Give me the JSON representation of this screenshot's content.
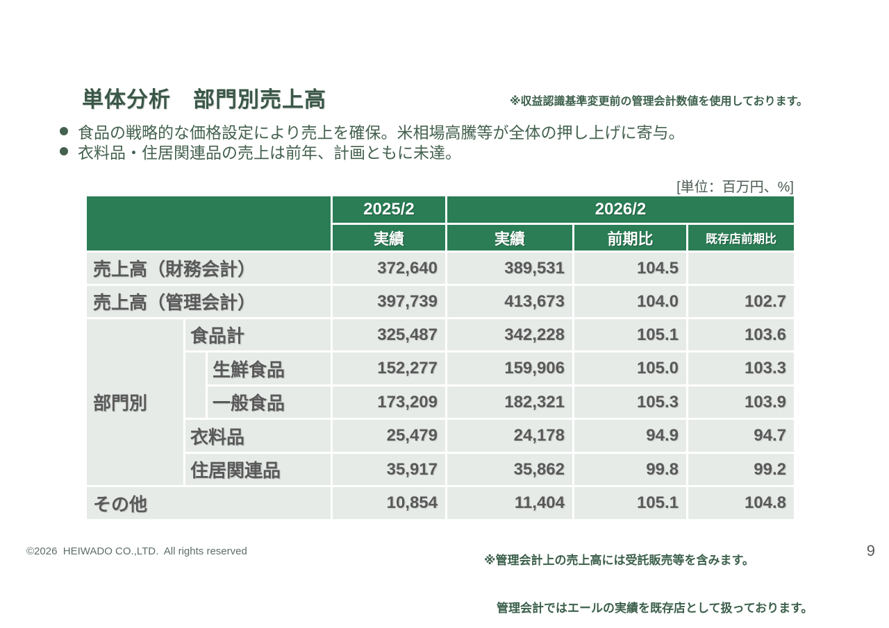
{
  "slide": {
    "title": "単体分析　部門別売上高",
    "header_note": "※収益認識基準変更前の管理会計数値を使用しております。",
    "bullets": [
      "食品の戦略的な価格設定により売上を確保。米相場高騰等が全体の押し上げに寄与。",
      "衣料品・住居関連品の売上は前年、計画ともに未達。"
    ],
    "unit_label": "[単位：百万円、%]",
    "footnote_lines": [
      "※管理会計上の売上高には受託販売等を含みます。",
      "管理会計ではエールの実績を既存店として扱っております。"
    ],
    "copyright": "©2026  HEIWADO CO.,LTD.  All rights reserved",
    "page_number": "9"
  },
  "table": {
    "header": {
      "year_prev": "2025/2",
      "year_curr": "2026/2",
      "sub": [
        "実績",
        "実績",
        "前期比",
        "既存店前期比"
      ]
    },
    "group_label": "部門別",
    "rows": [
      {
        "label": "売上高（財務会計）",
        "values": [
          "372,640",
          "389,531",
          "104.5",
          ""
        ]
      },
      {
        "label": "売上高（管理会計）",
        "values": [
          "397,739",
          "413,673",
          "104.0",
          "102.7"
        ]
      },
      {
        "label": "食品計",
        "values": [
          "325,487",
          "342,228",
          "105.1",
          "103.6"
        ]
      },
      {
        "label": "生鮮食品",
        "values": [
          "152,277",
          "159,906",
          "105.0",
          "103.3"
        ]
      },
      {
        "label": "一般食品",
        "values": [
          "173,209",
          "182,321",
          "105.3",
          "103.9"
        ]
      },
      {
        "label": "衣料品",
        "values": [
          "25,479",
          "24,178",
          "94.9",
          "94.7"
        ]
      },
      {
        "label": "住居関連品",
        "values": [
          "35,917",
          "35,862",
          "99.8",
          "99.2"
        ]
      },
      {
        "label": "その他",
        "values": [
          "10,854",
          "11,404",
          "105.1",
          "104.8"
        ]
      }
    ]
  }
}
